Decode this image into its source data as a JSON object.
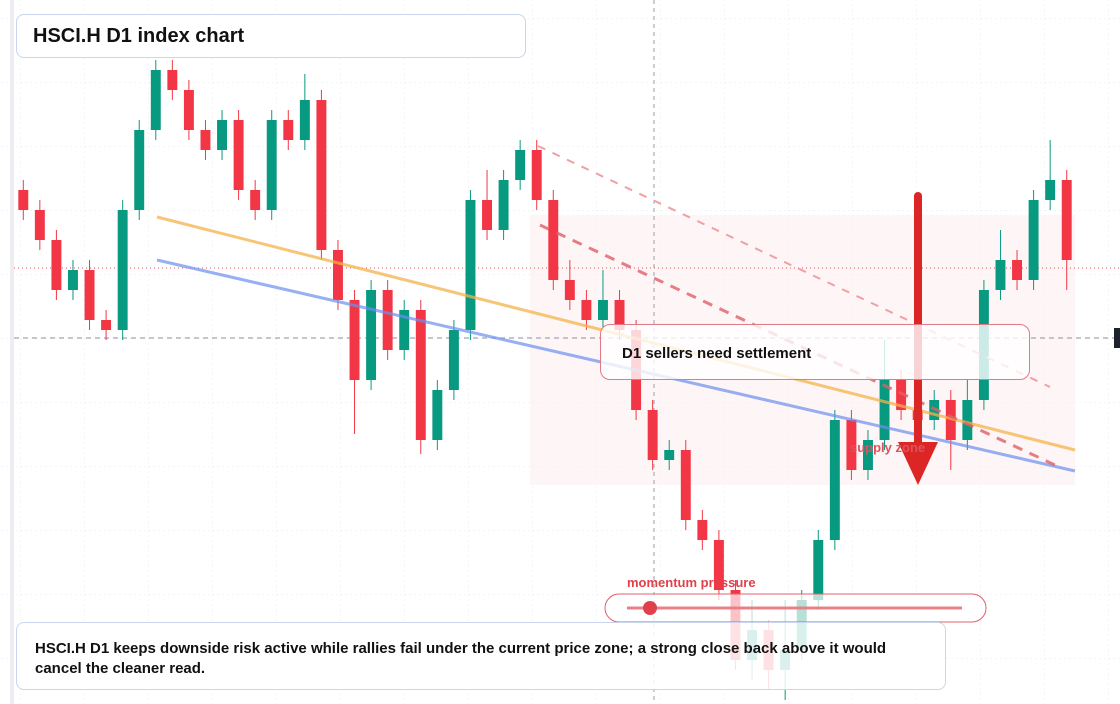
{
  "chart_data": {
    "type": "candlestick",
    "title": "HSCI.H D1 index chart",
    "callout": "D1 sellers need settlement",
    "zone_label": "supply zone",
    "indicator_label": "momentum pressure",
    "caption": "HSCI.H D1 keeps downside risk active while rallies fail under the current price zone; a strong close back above it would cancel the cleaner read.",
    "up_color": "#089981",
    "down_color": "#f23645",
    "ylim": [
      0,
      704
    ],
    "open": [
      514,
      494,
      464,
      414,
      434,
      384,
      374,
      494,
      574,
      634,
      614,
      574,
      554,
      584,
      514,
      494,
      584,
      564,
      604,
      454,
      404,
      324,
      414,
      354,
      394,
      264,
      314,
      374,
      504,
      474,
      524,
      554,
      504,
      424,
      404,
      384,
      404,
      374,
      294,
      244,
      254,
      184,
      164,
      114,
      44,
      74,
      34,
      54,
      104,
      164,
      284,
      234,
      264,
      324,
      294,
      284,
      304,
      264,
      304,
      414,
      444,
      424,
      504,
      524
    ],
    "high": [
      524,
      504,
      474,
      444,
      444,
      394,
      504,
      584,
      644,
      644,
      624,
      584,
      594,
      594,
      524,
      594,
      594,
      630,
      614,
      464,
      414,
      424,
      424,
      404,
      404,
      324,
      384,
      514,
      534,
      534,
      564,
      564,
      514,
      444,
      414,
      434,
      414,
      384,
      304,
      264,
      264,
      194,
      174,
      124,
      104,
      84,
      104,
      114,
      174,
      294,
      294,
      274,
      364,
      334,
      314,
      314,
      314,
      324,
      424,
      474,
      454,
      514,
      564,
      534
    ],
    "low": [
      484,
      454,
      404,
      404,
      374,
      364,
      364,
      484,
      564,
      604,
      564,
      544,
      544,
      504,
      484,
      484,
      554,
      554,
      444,
      394,
      270,
      314,
      344,
      344,
      250,
      254,
      304,
      364,
      464,
      464,
      514,
      494,
      414,
      394,
      374,
      374,
      364,
      284,
      234,
      234,
      174,
      154,
      104,
      34,
      24,
      14,
      4,
      44,
      94,
      154,
      224,
      224,
      254,
      284,
      264,
      274,
      234,
      254,
      294,
      404,
      414,
      414,
      494,
      414
    ],
    "close": [
      494,
      464,
      414,
      434,
      384,
      374,
      494,
      574,
      634,
      614,
      574,
      554,
      584,
      514,
      494,
      584,
      564,
      604,
      454,
      404,
      324,
      414,
      354,
      394,
      264,
      314,
      374,
      504,
      474,
      524,
      554,
      504,
      424,
      404,
      384,
      404,
      374,
      294,
      244,
      254,
      184,
      164,
      114,
      44,
      74,
      34,
      54,
      104,
      164,
      284,
      234,
      264,
      324,
      294,
      284,
      304,
      264,
      304,
      414,
      444,
      424,
      504,
      524,
      444
    ]
  }
}
